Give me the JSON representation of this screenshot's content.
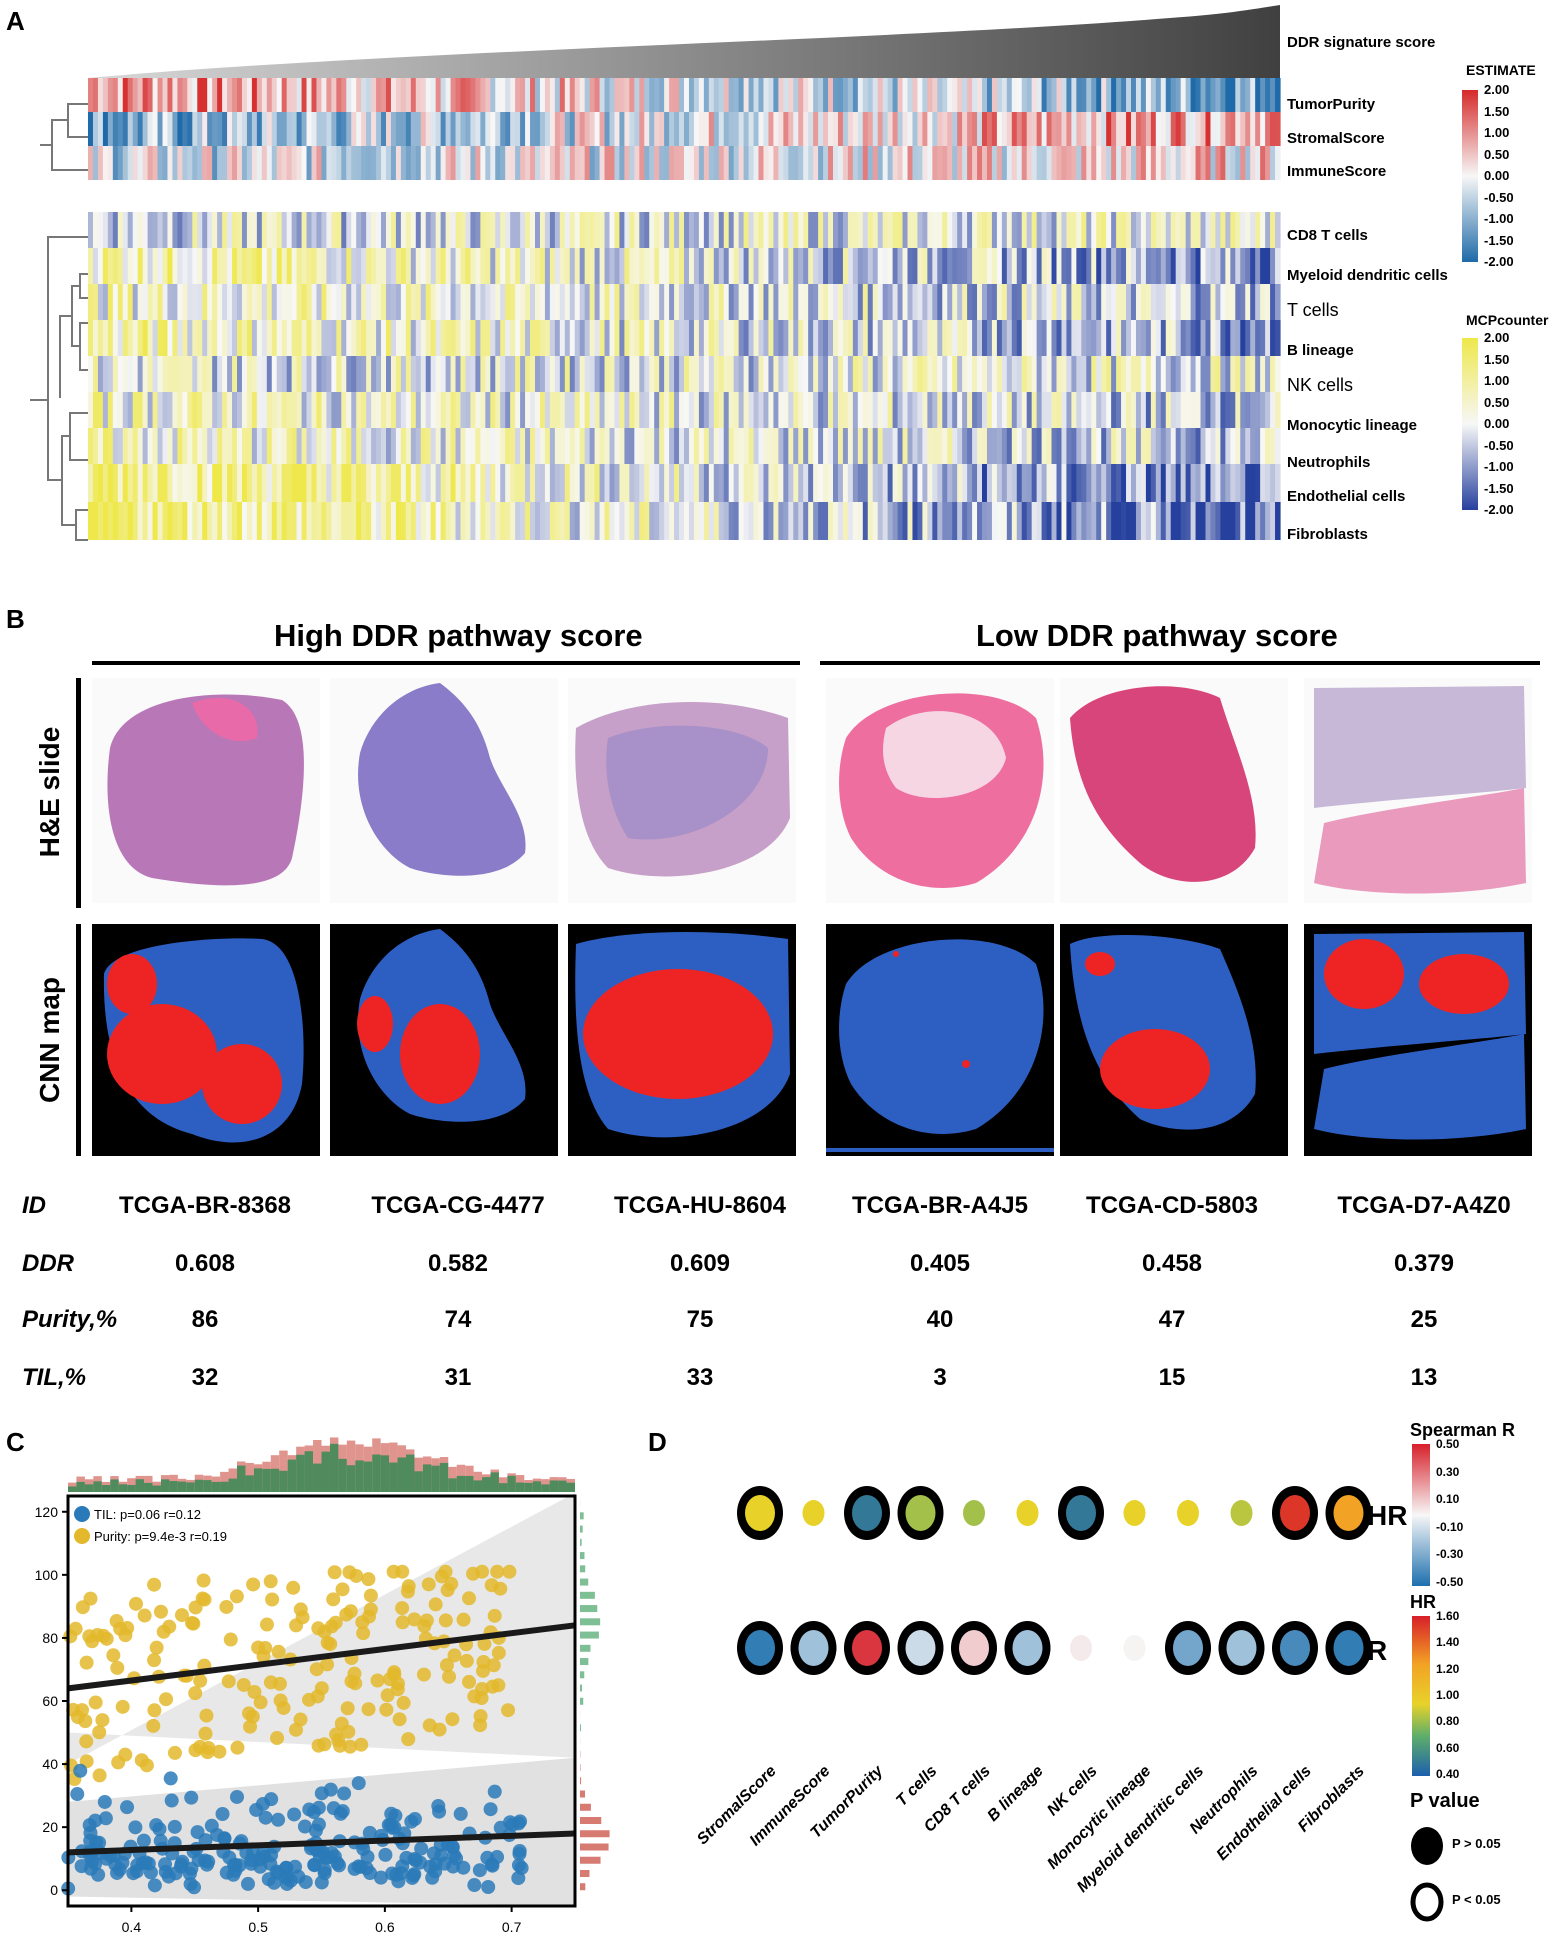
{
  "panels": {
    "a": "A",
    "b": "B",
    "c": "C",
    "d": "D"
  },
  "panel_a": {
    "signature_label": "DDR signature score",
    "estimate_rows": [
      "TumorPurity",
      "StromalScore",
      "ImmuneScore"
    ],
    "mcp_rows": [
      "CD8 T cells",
      "Myeloid dendritic cells",
      "T cells",
      "B lineage",
      "NK cells",
      "Monocytic lineage",
      "Neutrophils",
      "Endothelial cells",
      "Fibroblasts"
    ],
    "estimate_legend": {
      "title": "ESTIMATE",
      "ticks": [
        "2.00",
        "1.50",
        "1.00",
        "0.50",
        "0.00",
        "-0.50",
        "-1.00",
        "-1.50",
        "-2.00"
      ]
    },
    "mcp_legend": {
      "title": "MCPcounter",
      "ticks": [
        "2.00",
        "1.50",
        "1.00",
        "0.50",
        "0.00",
        "-0.50",
        "-1.00",
        "-1.50",
        "-2.00"
      ]
    }
  },
  "panel_b": {
    "high_title": "High DDR pathway score",
    "low_title": "Low DDR pathway score",
    "row_he": "H&E slide",
    "row_cnn": "CNN map",
    "table": {
      "row_labels": [
        "ID",
        "DDR",
        "Purity,%",
        "TIL,%"
      ],
      "samples": [
        {
          "id": "TCGA-BR-8368",
          "ddr": "0.608",
          "purity": "86",
          "til": "32"
        },
        {
          "id": "TCGA-CG-4477",
          "ddr": "0.582",
          "purity": "74",
          "til": "31"
        },
        {
          "id": "TCGA-HU-8604",
          "ddr": "0.609",
          "purity": "75",
          "til": "33"
        },
        {
          "id": "TCGA-BR-A4J5",
          "ddr": "0.405",
          "purity": "40",
          "til": "3"
        },
        {
          "id": "TCGA-CD-5803",
          "ddr": "0.458",
          "purity": "47",
          "til": "15"
        },
        {
          "id": "TCGA-D7-A4Z0",
          "ddr": "0.379",
          "purity": "25",
          "til": "13"
        }
      ]
    }
  },
  "chart_data": [
    {
      "type": "scatter",
      "title": "",
      "xlabel": "",
      "ylabel": "",
      "xlim": [
        0.35,
        0.75
      ],
      "ylim": [
        -5,
        125
      ],
      "xticks": [
        "0.4",
        "0.5",
        "0.6",
        "0.7"
      ],
      "yticks": [
        "0",
        "20",
        "40",
        "60",
        "80",
        "100",
        "120"
      ],
      "legend": [
        {
          "label": "TIL: p=0.06 r=0.12",
          "color": "#2a7ab9"
        },
        {
          "label": "Purity: p=9.4e-3 r=0.19",
          "color": "#e3b82b"
        }
      ],
      "fits": [
        {
          "name": "TIL",
          "x": [
            0.35,
            0.75
          ],
          "y": [
            12,
            18
          ]
        },
        {
          "name": "Purity",
          "x": [
            0.35,
            0.75
          ],
          "y": [
            64,
            84
          ]
        }
      ],
      "series": [
        {
          "name": "TIL",
          "color": "#2a7ab9",
          "summary": "DDR 0.35–0.75, TIL mostly 0–40%"
        },
        {
          "name": "Purity",
          "color": "#e3b82b",
          "summary": "DDR 0.35–0.75, purity mostly 40–100%"
        }
      ]
    },
    {
      "type": "dot-matrix",
      "rows": [
        "HR",
        "R"
      ],
      "columns": [
        "StromalScore",
        "ImmuneScore",
        "TumorPurity",
        "T cells",
        "CD8 T cells",
        "B lineage",
        "NK cells",
        "Monocytic lineage",
        "Myeloid dendritic cells",
        "Neutrophils",
        "Endothelial cells",
        "Fibroblasts"
      ],
      "hr_values": [
        1.0,
        1.0,
        0.5,
        0.85,
        0.85,
        1.0,
        0.5,
        1.0,
        1.0,
        0.9,
        1.55,
        1.3
      ],
      "hr_sig_p_lt_005": [
        true,
        false,
        true,
        true,
        false,
        false,
        true,
        false,
        false,
        false,
        true,
        true
      ],
      "r_values": [
        -0.45,
        -0.2,
        0.45,
        -0.1,
        0.1,
        -0.2,
        0.03,
        0.01,
        -0.3,
        -0.2,
        -0.4,
        -0.45
      ],
      "r_sig_p_lt_005": [
        true,
        true,
        true,
        true,
        true,
        true,
        false,
        false,
        true,
        true,
        true,
        true
      ],
      "spearman_legend": {
        "title": "Spearman R",
        "ticks": [
          "0.50",
          "0.30",
          "0.10",
          "-0.10",
          "-0.30",
          "-0.50"
        ]
      },
      "hr_legend": {
        "title": "HR",
        "ticks": [
          "1.60",
          "1.40",
          "1.20",
          "1.00",
          "0.80",
          "0.60",
          "0.40"
        ]
      },
      "pvalue_legend": {
        "title": "P value",
        "items": [
          "P > 0.05",
          "P < 0.05"
        ]
      }
    }
  ]
}
